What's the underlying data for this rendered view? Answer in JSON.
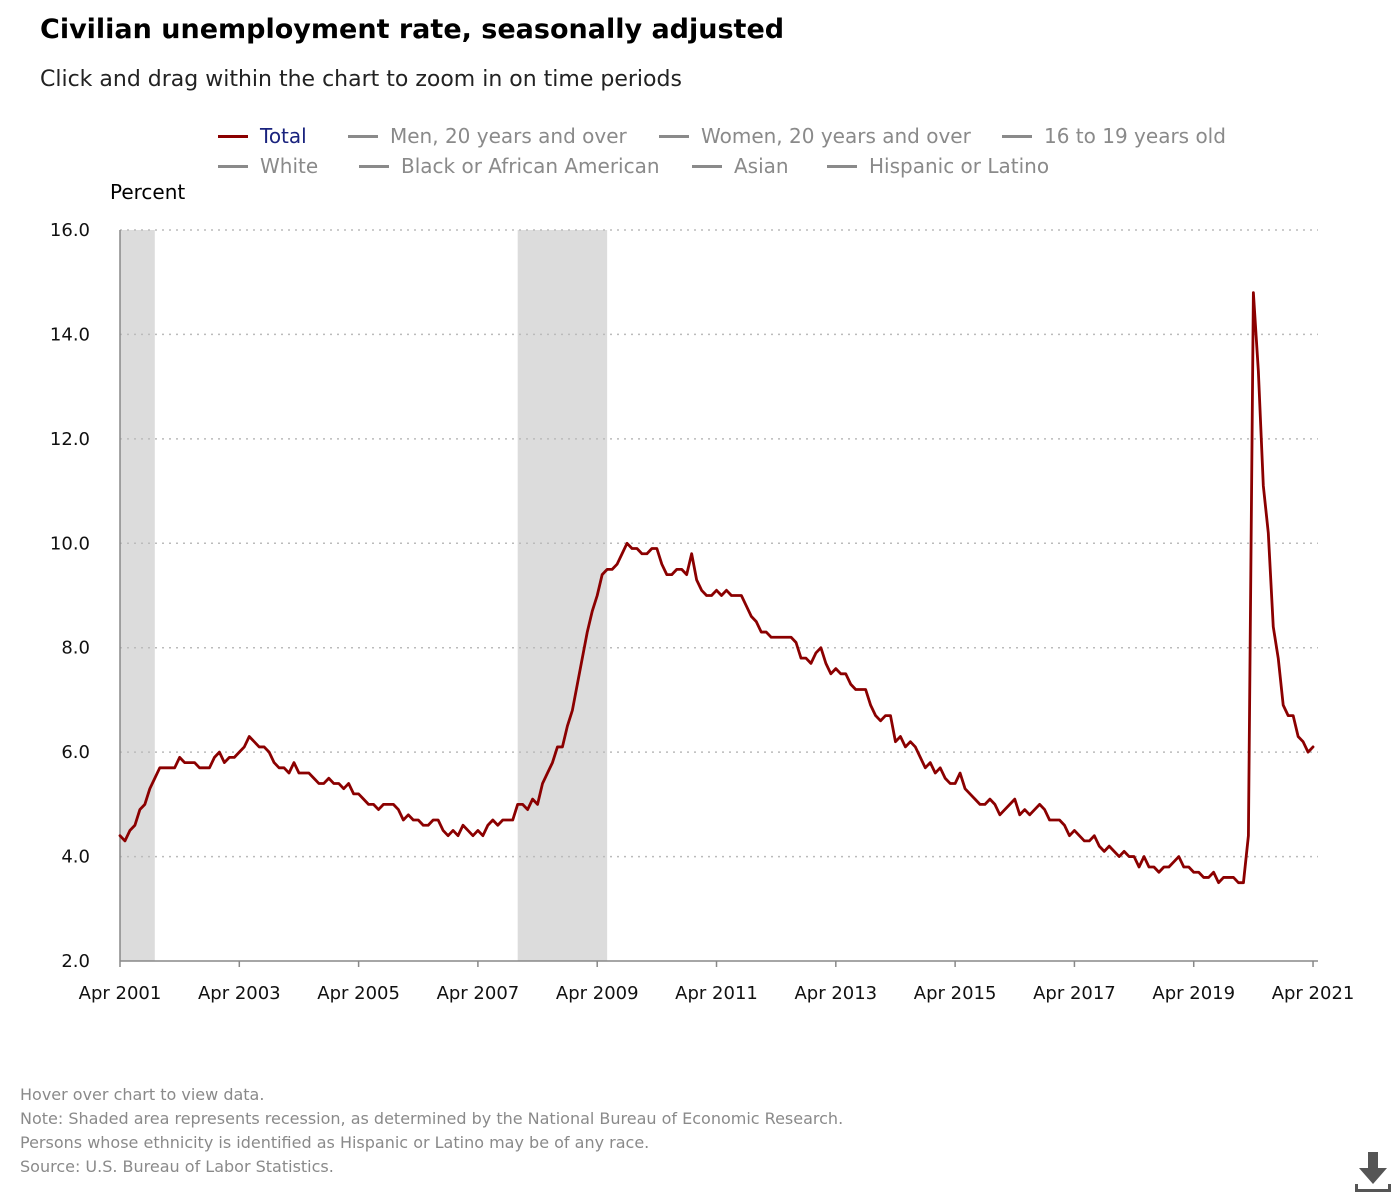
{
  "title": "Civilian unemployment rate, seasonally adjusted",
  "subtitle": "Click and drag within the chart to zoom in on time periods",
  "legend": [
    {
      "label": "Total",
      "active": true
    },
    {
      "label": "Men, 20 years and over",
      "active": false
    },
    {
      "label": "Women, 20 years and over",
      "active": false
    },
    {
      "label": "16 to 19 years old",
      "active": false
    },
    {
      "label": "White",
      "active": false
    },
    {
      "label": "Black or African American",
      "active": false
    },
    {
      "label": "Asian",
      "active": false
    },
    {
      "label": "Hispanic or Latino",
      "active": false
    }
  ],
  "notes": [
    "Hover over chart to view data.",
    "Note: Shaded area represents recession, as determined by the National Bureau of Economic Research.",
    "Persons whose ethnicity is identified as Hispanic or Latino may be of any race.",
    "Source: U.S. Bureau of Labor Statistics."
  ],
  "download_icon": "download-icon",
  "colors": {
    "total_line": "#8b0000",
    "recession": "#dcdcdc",
    "grid": "#bbbbbb",
    "legend_active_text": "#1a237e",
    "inactive": "#8a8a8a"
  },
  "chart_data": {
    "type": "line",
    "ylabel": "Percent",
    "ylim": [
      2.0,
      16.0
    ],
    "yticks": [
      "2.0",
      "4.0",
      "6.0",
      "8.0",
      "10.0",
      "12.0",
      "14.0",
      "16.0"
    ],
    "xlim": [
      "2001-04",
      "2021-05"
    ],
    "xtick_labels": [
      "Apr 2001",
      "Apr 2003",
      "Apr 2005",
      "Apr 2007",
      "Apr 2009",
      "Apr 2011",
      "Apr 2013",
      "Apr 2015",
      "Apr 2017",
      "Apr 2019",
      "Apr 2021"
    ],
    "grid": "horizontal dotted",
    "recessions": [
      {
        "start": "2001-03",
        "end": "2001-11"
      },
      {
        "start": "2007-12",
        "end": "2009-06"
      }
    ],
    "series": [
      {
        "name": "Total",
        "color": "#8b0000",
        "start": "2001-04",
        "frequency": "monthly",
        "values": [
          4.4,
          4.3,
          4.5,
          4.6,
          4.9,
          5.0,
          5.3,
          5.5,
          5.7,
          5.7,
          5.7,
          5.7,
          5.9,
          5.8,
          5.8,
          5.8,
          5.7,
          5.7,
          5.7,
          5.9,
          6.0,
          5.8,
          5.9,
          5.9,
          6.0,
          6.1,
          6.3,
          6.2,
          6.1,
          6.1,
          6.0,
          5.8,
          5.7,
          5.7,
          5.6,
          5.8,
          5.6,
          5.6,
          5.6,
          5.5,
          5.4,
          5.4,
          5.5,
          5.4,
          5.4,
          5.3,
          5.4,
          5.2,
          5.2,
          5.1,
          5.0,
          5.0,
          4.9,
          5.0,
          5.0,
          5.0,
          4.9,
          4.7,
          4.8,
          4.7,
          4.7,
          4.6,
          4.6,
          4.7,
          4.7,
          4.5,
          4.4,
          4.5,
          4.4,
          4.6,
          4.5,
          4.4,
          4.5,
          4.4,
          4.6,
          4.7,
          4.6,
          4.7,
          4.7,
          4.7,
          5.0,
          5.0,
          4.9,
          5.1,
          5.0,
          5.4,
          5.6,
          5.8,
          6.1,
          6.1,
          6.5,
          6.8,
          7.3,
          7.8,
          8.3,
          8.7,
          9.0,
          9.4,
          9.5,
          9.5,
          9.6,
          9.8,
          10.0,
          9.9,
          9.9,
          9.8,
          9.8,
          9.9,
          9.9,
          9.6,
          9.4,
          9.4,
          9.5,
          9.5,
          9.4,
          9.8,
          9.3,
          9.1,
          9.0,
          9.0,
          9.1,
          9.0,
          9.1,
          9.0,
          9.0,
          9.0,
          8.8,
          8.6,
          8.5,
          8.3,
          8.3,
          8.2,
          8.2,
          8.2,
          8.2,
          8.2,
          8.1,
          7.8,
          7.8,
          7.7,
          7.9,
          8.0,
          7.7,
          7.5,
          7.6,
          7.5,
          7.5,
          7.3,
          7.2,
          7.2,
          7.2,
          6.9,
          6.7,
          6.6,
          6.7,
          6.7,
          6.2,
          6.3,
          6.1,
          6.2,
          6.1,
          5.9,
          5.7,
          5.8,
          5.6,
          5.7,
          5.5,
          5.4,
          5.4,
          5.6,
          5.3,
          5.2,
          5.1,
          5.0,
          5.0,
          5.1,
          5.0,
          4.8,
          4.9,
          5.0,
          5.1,
          4.8,
          4.9,
          4.8,
          4.9,
          5.0,
          4.9,
          4.7,
          4.7,
          4.7,
          4.6,
          4.4,
          4.5,
          4.4,
          4.3,
          4.3,
          4.4,
          4.2,
          4.1,
          4.2,
          4.1,
          4.0,
          4.1,
          4.0,
          4.0,
          3.8,
          4.0,
          3.8,
          3.8,
          3.7,
          3.8,
          3.8,
          3.9,
          4.0,
          3.8,
          3.8,
          3.7,
          3.7,
          3.6,
          3.6,
          3.7,
          3.5,
          3.6,
          3.6,
          3.6,
          3.5,
          3.5,
          4.4,
          14.8,
          13.3,
          11.1,
          10.2,
          8.4,
          7.8,
          6.9,
          6.7,
          6.7,
          6.3,
          6.2,
          6.0,
          6.1
        ]
      }
    ]
  }
}
